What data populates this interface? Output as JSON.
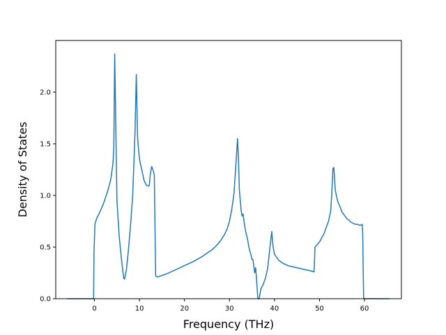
{
  "chart_data": {
    "type": "line",
    "title": "",
    "xlabel": "Frequency (THz)",
    "ylabel": "Density of States",
    "xlim": [
      -8.6,
      68.2
    ],
    "ylim": [
      0.0,
      2.5
    ],
    "xticks": [
      0,
      10,
      20,
      30,
      40,
      50,
      60
    ],
    "xtick_labels": [
      "0",
      "10",
      "20",
      "30",
      "40",
      "50",
      "60"
    ],
    "yticks": [
      0.0,
      0.5,
      1.0,
      1.5,
      2.0
    ],
    "ytick_labels": [
      "0.0",
      "0.5",
      "1.0",
      "1.5",
      "2.0"
    ],
    "grid": false,
    "legend": "none",
    "series": [
      {
        "color": "#1f77b4",
        "x": [
          -6.0,
          -0.2,
          -0.1,
          0.1,
          0.5,
          1.0,
          2.0,
          3.0,
          3.6,
          4.1,
          4.3,
          4.5,
          5.0,
          5.5,
          6.0,
          6.5,
          6.7,
          7.1,
          7.5,
          8.0,
          8.5,
          9.0,
          9.3,
          9.6,
          10.0,
          11.0,
          11.5,
          12.0,
          12.2,
          12.4,
          12.7,
          13.0,
          13.3,
          13.6,
          14.0,
          16.0,
          18.0,
          20.0,
          22.0,
          24.0,
          26.0,
          27.0,
          28.0,
          29.0,
          29.5,
          30.0,
          30.5,
          31.0,
          31.5,
          31.8,
          32.0,
          32.2,
          32.6,
          32.8,
          33.0,
          33.3,
          33.6,
          34.0,
          34.3,
          34.6,
          34.8,
          35.0,
          35.2,
          35.6,
          35.8,
          36.0,
          36.3,
          36.6,
          36.8,
          37.0,
          37.3,
          37.5,
          38.0,
          38.5,
          39.0,
          39.4,
          39.7,
          40.0,
          40.5,
          41.0,
          42.0,
          43.0,
          44.0,
          45.0,
          46.0,
          47.0,
          48.0,
          48.8,
          49.0,
          50.0,
          51.0,
          52.0,
          52.5,
          52.7,
          53.0,
          53.2,
          53.5,
          54.0,
          55.0,
          56.0,
          57.0,
          58.0,
          58.5,
          59.0,
          59.5,
          59.6,
          59.8,
          60.2,
          65.5
        ],
        "y": [
          0.0,
          0.0,
          0.45,
          0.72,
          0.78,
          0.82,
          0.92,
          1.05,
          1.15,
          1.3,
          1.45,
          2.37,
          0.95,
          0.6,
          0.38,
          0.2,
          0.19,
          0.28,
          0.45,
          0.7,
          1.0,
          1.6,
          2.17,
          1.55,
          1.35,
          1.15,
          1.1,
          1.09,
          1.1,
          1.2,
          1.28,
          1.25,
          1.2,
          0.22,
          0.21,
          0.24,
          0.28,
          0.32,
          0.36,
          0.41,
          0.47,
          0.51,
          0.56,
          0.63,
          0.68,
          0.75,
          0.86,
          1.02,
          1.35,
          1.55,
          1.35,
          1.05,
          0.85,
          0.8,
          0.82,
          0.73,
          0.65,
          0.58,
          0.5,
          0.45,
          0.42,
          0.38,
          0.38,
          0.25,
          0.3,
          0.2,
          0.0,
          0.0,
          0.05,
          0.1,
          0.12,
          0.14,
          0.2,
          0.3,
          0.5,
          0.65,
          0.5,
          0.43,
          0.4,
          0.37,
          0.34,
          0.32,
          0.31,
          0.3,
          0.29,
          0.28,
          0.27,
          0.26,
          0.5,
          0.55,
          0.63,
          0.75,
          0.85,
          1.0,
          1.26,
          1.27,
          1.05,
          0.95,
          0.84,
          0.78,
          0.74,
          0.72,
          0.72,
          0.71,
          0.72,
          0.62,
          0.0,
          0.0,
          0.0
        ]
      }
    ]
  }
}
